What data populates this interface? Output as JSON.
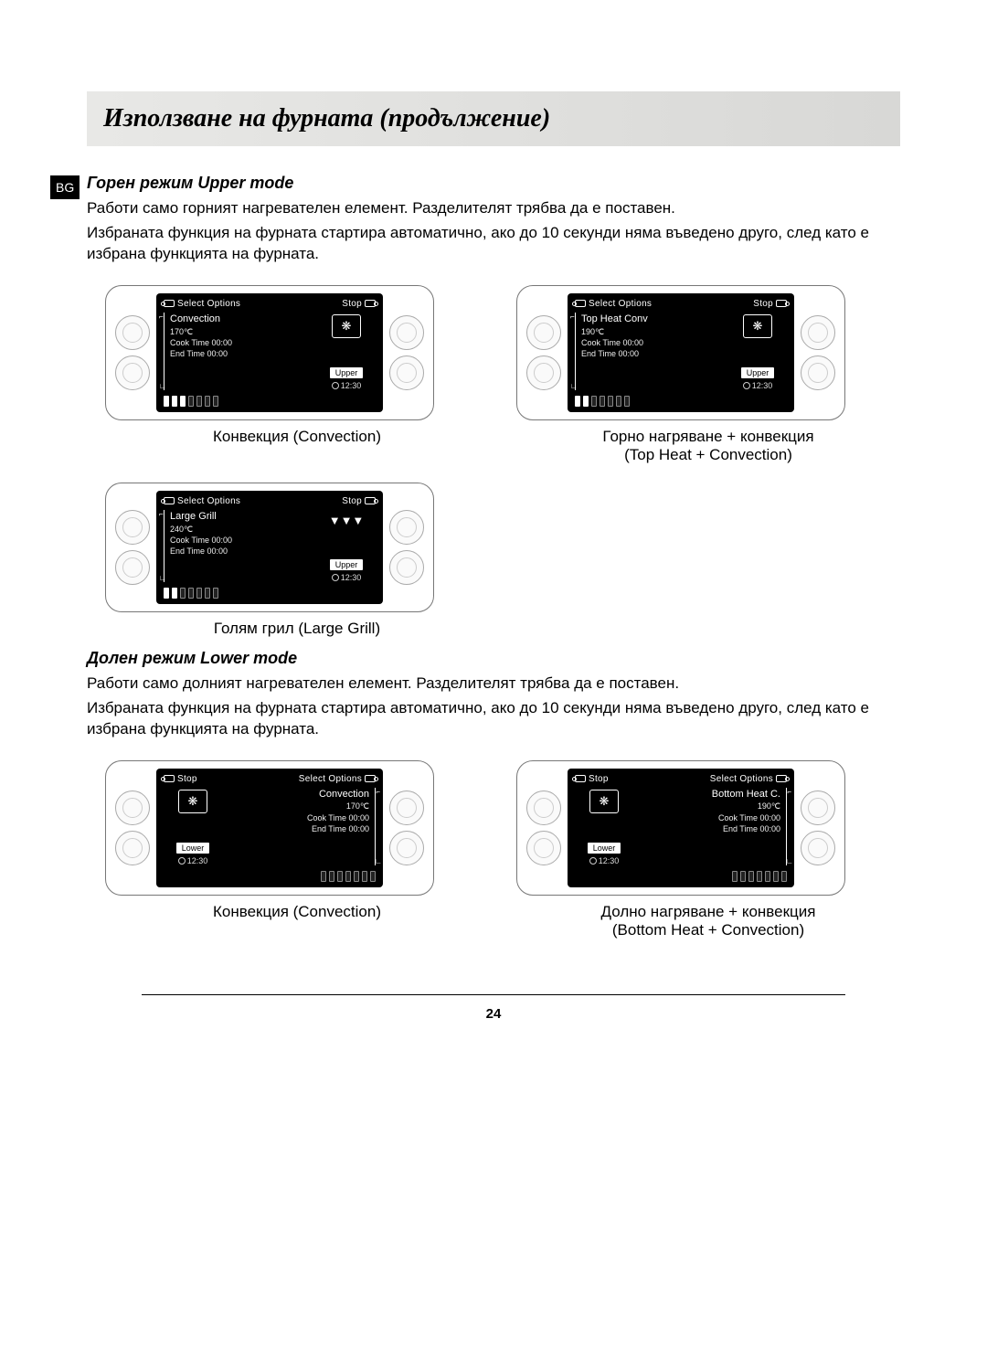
{
  "page": {
    "title": "Използване на фурната (продължение)",
    "lang_badge": "BG",
    "page_number": "24"
  },
  "upper": {
    "heading": "Горен режим Upper mode",
    "para1": "Работи само горният нагревателен елемент. Разделителят трябва да е поставен.",
    "para2": "Избраната функция на фурната стартира автоматично, ако до 10 секунди няма въведено друго, след като е избрана функцията на фурната.",
    "panels": [
      {
        "top_left": "Select Options",
        "top_right": "Stop",
        "mode": "Convection",
        "temp": "170℃",
        "cook_time": "Cook Time 00:00",
        "end_time": "End Time 00:00",
        "mode_icon": "❋",
        "zone": "Upper",
        "clock": "12:30",
        "scale_on": 3,
        "caption": "Конвекция (Convection)",
        "caption2": ""
      },
      {
        "top_left": "Select Options",
        "top_right": "Stop",
        "mode": "Top Heat Conv",
        "temp": "190℃",
        "cook_time": "Cook Time 00:00",
        "end_time": "End Time 00:00",
        "mode_icon": "❋",
        "zone": "Upper",
        "clock": "12:30",
        "scale_on": 2,
        "caption": "Горно нагряване + конвекция",
        "caption2": "(Top Heat + Convection)"
      },
      {
        "top_left": "Select Options",
        "top_right": "Stop",
        "mode": "Large Grill",
        "temp": "240℃",
        "cook_time": "Cook Time 00:00",
        "end_time": "End Time 00:00",
        "mode_icon": "▼▼▼",
        "zone": "Upper",
        "clock": "12:30",
        "scale_on": 2,
        "caption": "Голям грил (Large Grill)",
        "caption2": ""
      }
    ]
  },
  "lower": {
    "heading": "Долен режим Lower mode",
    "para1": "Работи само долният нагревателен елемент. Разделителят трябва да е поставен.",
    "para2": "Избраната функция на фурната стартира автоматично, ако до 10 секунди няма въведено друго, след като е избрана функцията на фурната.",
    "panels": [
      {
        "top_left": "Stop",
        "top_right": "Select Options",
        "mode": "Convection",
        "temp": "170℃",
        "cook_time": "Cook Time 00:00",
        "end_time": "End Time 00:00",
        "mode_icon": "❋",
        "zone": "Lower",
        "clock": "12:30",
        "scale_on": 0,
        "caption": "Конвекция (Convection)",
        "caption2": ""
      },
      {
        "top_left": "Stop",
        "top_right": "Select Options",
        "mode": "Bottom Heat C.",
        "temp": "190℃",
        "cook_time": "Cook Time 00:00",
        "end_time": "End Time 00:00",
        "mode_icon": "❋",
        "zone": "Lower",
        "clock": "12:30",
        "scale_on": 0,
        "caption": "Долно нагряване + конвекция",
        "caption2": "(Bottom Heat + Convection)"
      }
    ]
  },
  "colors": {
    "title_bg": "#e4e4e2",
    "display_bg": "#000000",
    "display_fg": "#ffffff"
  }
}
